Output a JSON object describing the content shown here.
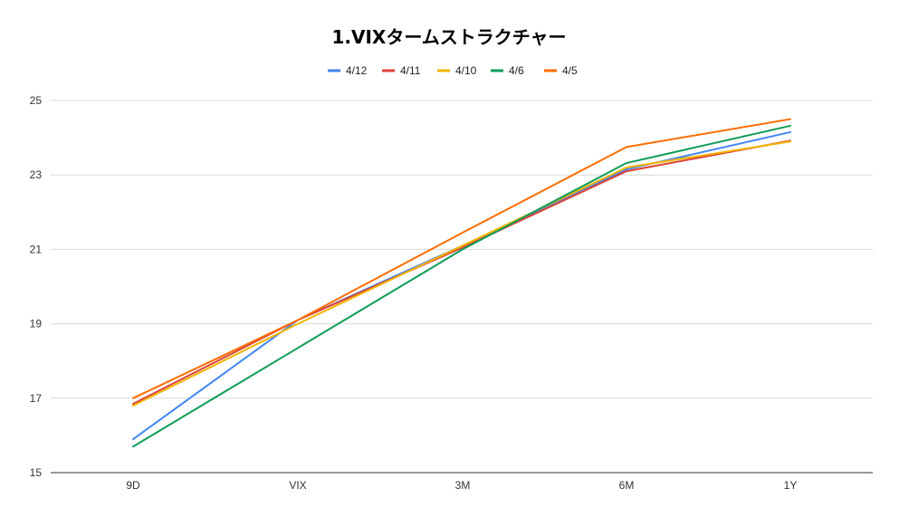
{
  "chart_data": {
    "type": "line",
    "title": "1.VIXタームストラクチャー",
    "xlabel": "",
    "ylabel": "",
    "categories": [
      "9D",
      "VIX",
      "3M",
      "6M",
      "1Y"
    ],
    "ylim": [
      15,
      25
    ],
    "yticks": [
      15,
      17,
      19,
      21,
      23,
      25
    ],
    "grid": true,
    "legend_position": "top",
    "series": [
      {
        "name": "4/12",
        "color": "#4285f4",
        "values": [
          15.9,
          19.1,
          21.1,
          23.15,
          24.15
        ]
      },
      {
        "name": "4/11",
        "color": "#db4437",
        "values": [
          16.85,
          19.1,
          21.05,
          23.1,
          23.92
        ]
      },
      {
        "name": "4/10",
        "color": "#f4b400",
        "values": [
          16.8,
          19.0,
          21.1,
          23.2,
          23.9
        ]
      },
      {
        "name": "4/6",
        "color": "#0f9d58",
        "values": [
          15.7,
          18.35,
          21.0,
          23.32,
          24.32
        ]
      },
      {
        "name": "4/5",
        "color": "#ff6d01",
        "values": [
          17.0,
          19.1,
          21.45,
          23.75,
          24.5
        ]
      }
    ]
  }
}
